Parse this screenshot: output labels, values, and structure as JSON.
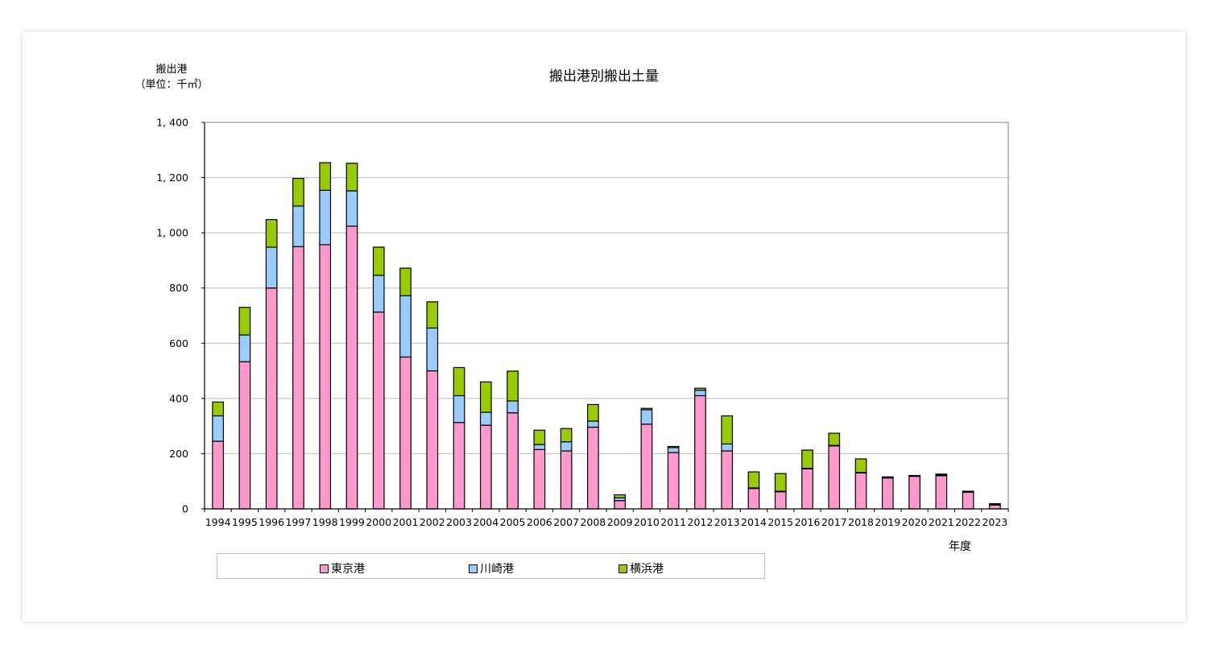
{
  "chart_data": {
    "type": "bar",
    "stacked": true,
    "title": "搬出港別搬出土量",
    "ylabel_line1": "搬出港",
    "ylabel_line2": "（単位：千㎥）",
    "xlabel": "年度",
    "ylim": [
      0,
      1400
    ],
    "yticks": [
      0,
      200,
      400,
      600,
      800,
      1000,
      1200,
      1400
    ],
    "ytick_labels": [
      "0",
      "200",
      "400",
      "600",
      "800",
      "1, 000",
      "1, 200",
      "1, 400"
    ],
    "grid": true,
    "legend_position": "bottom",
    "categories": [
      "1994",
      "1995",
      "1996",
      "1997",
      "1998",
      "1999",
      "2000",
      "2001",
      "2002",
      "2003",
      "2004",
      "2005",
      "2006",
      "2007",
      "2008",
      "2009",
      "2010",
      "2011",
      "2012",
      "2013",
      "2014",
      "2015",
      "2016",
      "2017",
      "2018",
      "2019",
      "2020",
      "2021",
      "2022",
      "2023"
    ],
    "series": [
      {
        "name": "東京港",
        "color": "#ff99cc",
        "values": [
          245,
          533,
          800,
          950,
          957,
          1024,
          713,
          550,
          500,
          313,
          303,
          348,
          215,
          210,
          296,
          30,
          307,
          204,
          410,
          210,
          74,
          62,
          145,
          228,
          130,
          112,
          118,
          120,
          60,
          14
        ]
      },
      {
        "name": "川崎港",
        "color": "#99ccff",
        "values": [
          92,
          97,
          148,
          147,
          197,
          128,
          133,
          222,
          155,
          97,
          47,
          43,
          18,
          33,
          22,
          10,
          52,
          18,
          20,
          25,
          2,
          2,
          2,
          2,
          2,
          2,
          2,
          3,
          2,
          2
        ]
      },
      {
        "name": "横浜港",
        "color": "#99cc00",
        "values": [
          50,
          100,
          100,
          100,
          100,
          100,
          102,
          100,
          95,
          102,
          110,
          108,
          52,
          48,
          60,
          11,
          5,
          4,
          7,
          102,
          58,
          64,
          66,
          44,
          49,
          2,
          1,
          3,
          2,
          3
        ]
      }
    ]
  }
}
